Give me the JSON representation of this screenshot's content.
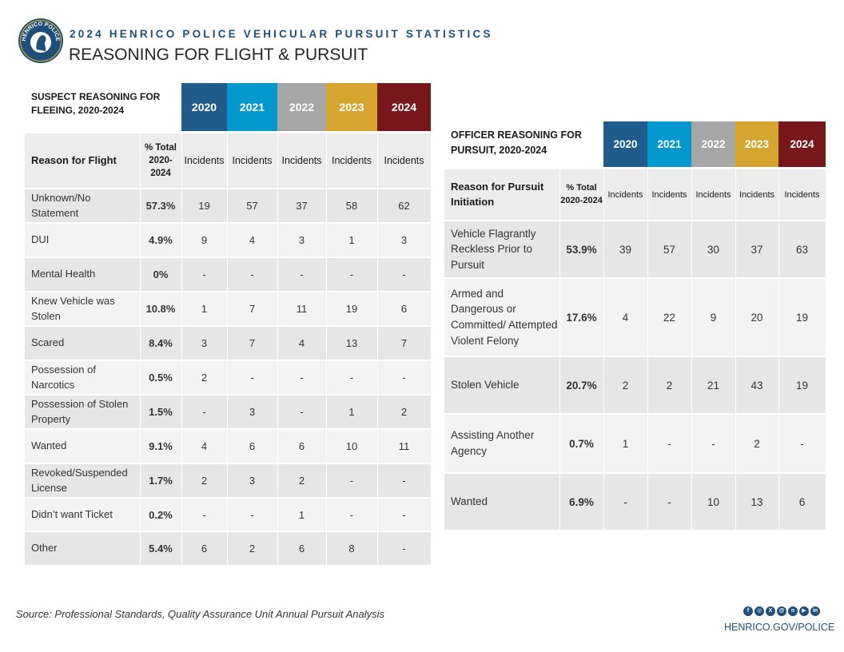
{
  "header": {
    "kicker": "2024 HENRICO POLICE VEHICULAR PURSUIT STATISTICS",
    "title": "REASONING FOR FLIGHT & PURSUIT",
    "seal_text": "HENRICO POLICE"
  },
  "colors": {
    "accent_navy": "#1f4e79",
    "year_2020": "#1f5c8b",
    "year_2021": "#0598cf",
    "year_2022": "#a6a6a6",
    "year_2023": "#d6a530",
    "year_2024": "#78171b"
  },
  "suspect_table": {
    "title": "SUSPECT REASONING FOR FLEEING, 2020-2024",
    "years": [
      "2020",
      "2021",
      "2022",
      "2023",
      "2024"
    ],
    "col_reason": "Reason for Flight",
    "col_pct": "% Total 2020-2024",
    "col_incidents": "Incidents",
    "rows": [
      {
        "reason": "Unknown/No Statement",
        "pct": "57.3%",
        "values": [
          "19",
          "57",
          "37",
          "58",
          "62"
        ]
      },
      {
        "reason": "DUI",
        "pct": "4.9%",
        "values": [
          "9",
          "4",
          "3",
          "1",
          "3"
        ]
      },
      {
        "reason": "Mental Health",
        "pct": "0%",
        "values": [
          "-",
          "-",
          "-",
          "-",
          "-"
        ]
      },
      {
        "reason": "Knew Vehicle was Stolen",
        "pct": "10.8%",
        "values": [
          "1",
          "7",
          "11",
          "19",
          "6"
        ]
      },
      {
        "reason": "Scared",
        "pct": "8.4%",
        "values": [
          "3",
          "7",
          "4",
          "13",
          "7"
        ]
      },
      {
        "reason": "Possession of Narcotics",
        "pct": "0.5%",
        "values": [
          "2",
          "-",
          "-",
          "-",
          "-"
        ]
      },
      {
        "reason": "Possession of Stolen Property",
        "pct": "1.5%",
        "values": [
          "-",
          "3",
          "-",
          "1",
          "2"
        ]
      },
      {
        "reason": "Wanted",
        "pct": "9.1%",
        "values": [
          "4",
          "6",
          "6",
          "10",
          "11"
        ]
      },
      {
        "reason": "Revoked/Suspended License",
        "pct": "1.7%",
        "values": [
          "2",
          "3",
          "2",
          "-",
          "-"
        ]
      },
      {
        "reason": "Didn’t want Ticket",
        "pct": "0.2%",
        "values": [
          "-",
          "-",
          "1",
          "-",
          "-"
        ]
      },
      {
        "reason": "Other",
        "pct": "5.4%",
        "values": [
          "6",
          "2",
          "6",
          "8",
          "-"
        ]
      }
    ]
  },
  "officer_table": {
    "title": "OFFICER REASONING FOR PURSUIT, 2020-2024",
    "years": [
      "2020",
      "2021",
      "2022",
      "2023",
      "2024"
    ],
    "col_reason": "Reason for Pursuit Initiation",
    "col_pct": "% Total 2020-2024",
    "col_incidents": "Incidents",
    "rows": [
      {
        "reason": "Vehicle Flagrantly Reckless Prior to Pursuit",
        "pct": "53.9%",
        "values": [
          "39",
          "57",
          "30",
          "37",
          "63"
        ]
      },
      {
        "reason": "Armed and Dangerous or Committed/ Attempted Violent Felony",
        "pct": "17.6%",
        "values": [
          "4",
          "22",
          "9",
          "20",
          "19"
        ]
      },
      {
        "reason": "Stolen Vehicle",
        "pct": "20.7%",
        "values": [
          "2",
          "2",
          "21",
          "43",
          "19"
        ]
      },
      {
        "reason": "Assisting Another Agency",
        "pct": "0.7%",
        "values": [
          "1",
          "-",
          "-",
          "2",
          "-"
        ]
      },
      {
        "reason": "Wanted",
        "pct": "6.9%",
        "values": [
          "-",
          "-",
          "10",
          "13",
          "6"
        ]
      }
    ]
  },
  "footer": {
    "source": "Source: Professional Standards, Quality Assurance Unit Annual Pursuit Analysis",
    "website": "HENRICO.GOV/POLICE",
    "social_icons": [
      "facebook-icon",
      "instagram-icon",
      "x-icon",
      "threads-icon",
      "nextdoor-icon",
      "youtube-icon",
      "linkedin-icon"
    ]
  }
}
